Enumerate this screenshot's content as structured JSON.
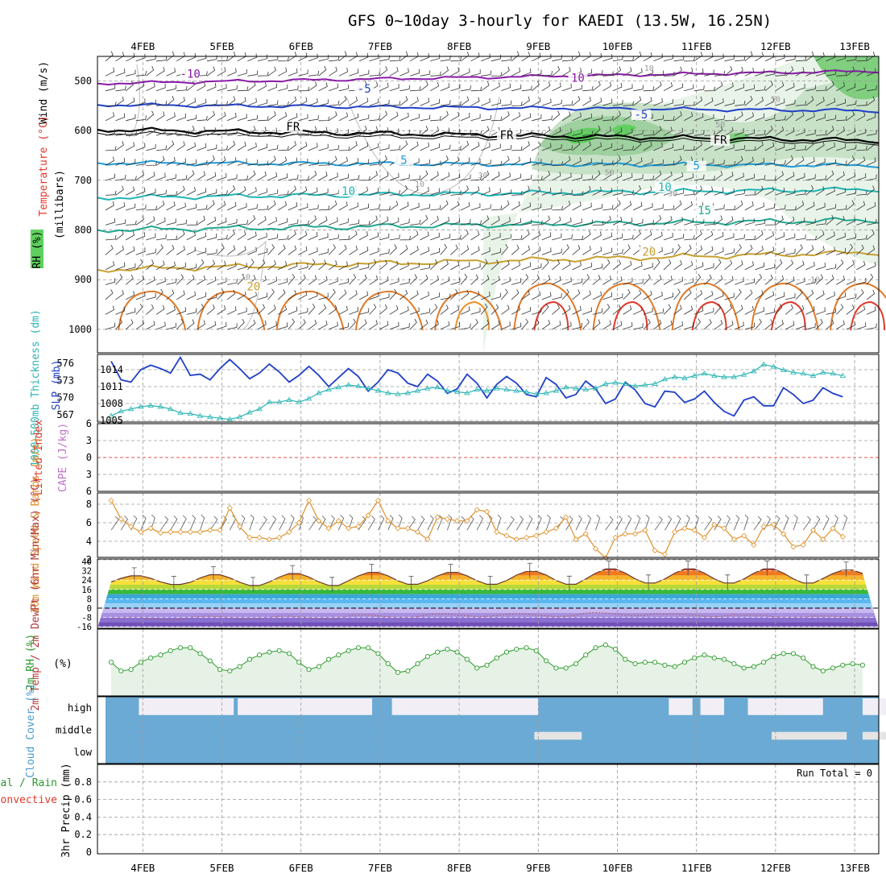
{
  "title": "GFS 0~10day 3-hourly for KAEDI (13.5W, 16.25N)",
  "dates": [
    "4FEB",
    "5FEB",
    "6FEB",
    "7FEB",
    "8FEB",
    "9FEB",
    "10FEB",
    "11FEB",
    "12FEB",
    "13FEB"
  ],
  "colors": {
    "slp": "#1f3fc8",
    "thickness": "#2ab4b4",
    "wind10m": "#e0902a",
    "rh2m": "#2a9a2a",
    "temp_red": "#e03a2a",
    "temp_orange": "#f0902a",
    "green_fill": "#5fd05f",
    "cloud": "#6aaad4",
    "grid": "#9a9a9a",
    "barb": "#555555"
  },
  "chart_data": [
    {
      "type": "contour",
      "name": "upper-air cross section",
      "ylabel": "(millibars)",
      "side_labels": [
        "Wind (m/s)",
        "Temperature (°C)",
        "RH (%)"
      ],
      "y_ticks": [
        "500",
        "600",
        "700",
        "800",
        "900",
        "1000"
      ],
      "ylim": [
        1000,
        450
      ],
      "isotherm_labels": [
        {
          "text": "-10",
          "x": 0.6,
          "p": 492
        },
        {
          "text": "10",
          "x": 5.5,
          "p": 500
        },
        {
          "text": "-5",
          "x": 2.8,
          "p": 522
        },
        {
          "text": "-5",
          "x": 6.3,
          "p": 574
        },
        {
          "text": "FR",
          "x": 1.9,
          "p": 598
        },
        {
          "text": "FR",
          "x": 4.6,
          "p": 615
        },
        {
          "text": "FR",
          "x": 7.3,
          "p": 625
        },
        {
          "text": "5",
          "x": 3.3,
          "p": 665
        },
        {
          "text": "5",
          "x": 7.0,
          "p": 677
        },
        {
          "text": "10",
          "x": 2.6,
          "p": 728
        },
        {
          "text": "10",
          "x": 6.6,
          "p": 720
        },
        {
          "text": "15",
          "x": 7.1,
          "p": 767
        },
        {
          "text": "20",
          "x": 6.4,
          "p": 850
        },
        {
          "text": "20",
          "x": 1.4,
          "p": 920
        }
      ],
      "rh_labels": [
        {
          "text": "10",
          "x": 6.4,
          "p": 480
        },
        {
          "text": "30",
          "x": 4.3,
          "p": 695
        },
        {
          "text": "50",
          "x": 5.9,
          "p": 690
        },
        {
          "text": "10",
          "x": 3.5,
          "p": 713
        },
        {
          "text": "50",
          "x": 7.3,
          "p": 593
        },
        {
          "text": "30",
          "x": 6.7,
          "p": 732
        },
        {
          "text": "50",
          "x": 8.0,
          "p": 542
        },
        {
          "text": "10",
          "x": 1.3,
          "p": 900
        },
        {
          "text": "10",
          "x": 8.5,
          "p": 905
        }
      ]
    },
    {
      "type": "line",
      "name": "SLP and 1000-500mb thickness",
      "ylabel_left": "1000~500mb Thickness (dm)",
      "ylabel_right": "SLP (mb)",
      "y_ticks_left": [
        "576",
        "573",
        "570",
        "567"
      ],
      "y_ticks_right": [
        "1014",
        "1011",
        "1008",
        "1005"
      ],
      "series": [
        {
          "name": "SLP (mb)",
          "ylim": [
            1005,
            1017
          ],
          "values": [
            1015.5,
            1012.2,
            1011.8,
            1014,
            1014.8,
            1014.2,
            1013.4,
            1016.2,
            1013,
            1013.2,
            1012.2,
            1014.2,
            1015.8,
            1014.2,
            1012.4,
            1013.4,
            1015,
            1013.6,
            1011.8,
            1013,
            1014.6,
            1013,
            1011,
            1012.6,
            1014.2,
            1012.8,
            1010.2,
            1011.8,
            1014,
            1013.4,
            1011.6,
            1011,
            1013.2,
            1012,
            1009.8,
            1010.6,
            1013.2,
            1011.6,
            1009,
            1011.4,
            1012.8,
            1011.6,
            1009.6,
            1009.2,
            1012.6,
            1011.4,
            1009,
            1009.6,
            1012,
            1010.6,
            1008,
            1008.8,
            1011.8,
            1010.4,
            1008,
            1007.4,
            1010.2,
            1010,
            1008.2,
            1008.8,
            1010.2,
            1008.2,
            1006.6,
            1005.8,
            1008.6,
            1009.2,
            1007.6,
            1007.6,
            1010.8,
            1009.6,
            1008,
            1008.6,
            1010.8,
            1009.8,
            1009.2
          ]
        },
        {
          "name": "Thickness (dm)",
          "ylim": [
            565,
            577
          ],
          "values": [
            566.8,
            567.6,
            568,
            568.4,
            568.6,
            568.4,
            568,
            567.3,
            567.2,
            566.8,
            566.6,
            566.4,
            566.2,
            566.6,
            567.4,
            568,
            569.2,
            569.2,
            569.6,
            569.2,
            569.8,
            570.8,
            571.4,
            571.8,
            572.2,
            572,
            571.6,
            571.2,
            570.8,
            570.6,
            570.8,
            571.2,
            571.6,
            571.8,
            571.2,
            571,
            570.8,
            571.4,
            571.2,
            571.6,
            571.4,
            571.2,
            571,
            570.6,
            570.8,
            571.2,
            571.8,
            571.6,
            571.4,
            571.6,
            572.4,
            572.6,
            572.4,
            572,
            572.2,
            572.4,
            573.2,
            573.6,
            573.4,
            573.8,
            574.2,
            573.8,
            573.6,
            573.6,
            574,
            574.6,
            575.8,
            575.4,
            574.8,
            574.4,
            574.2,
            573.8,
            574.4,
            574.2,
            573.8
          ]
        }
      ]
    },
    {
      "type": "line",
      "name": "Lifted Index and CAPE",
      "ylabel_left": "Lifted Index",
      "ylabel_right": "CAPE (J/kg)",
      "y_ticks": [
        "-6",
        "-3",
        "0",
        "3",
        "6"
      ],
      "ylim": [
        -6,
        6
      ],
      "series": [
        {
          "name": "Lifted Index",
          "values": []
        },
        {
          "name": "CAPE",
          "values": []
        }
      ]
    },
    {
      "type": "line",
      "name": "10m wind speed and barbs",
      "ylabel": "10m Wind Speed & Barbs (m/s)",
      "y_ticks": [
        "8",
        "6",
        "4",
        "2"
      ],
      "ylim": [
        1.5,
        9
      ],
      "series": [
        {
          "name": "10m Wind Speed",
          "values": [
            8.4,
            6.4,
            5.6,
            5,
            5.4,
            4.9,
            5,
            5,
            5,
            5,
            5.2,
            5.2,
            7.6,
            5.6,
            4.4,
            4.4,
            4.2,
            4.4,
            5,
            6,
            8.4,
            6.2,
            5.4,
            6.2,
            5.4,
            5.6,
            6.8,
            8.4,
            6.2,
            5.4,
            5.4,
            5,
            4.2,
            6.6,
            6.4,
            6.2,
            6.2,
            7.4,
            7.2,
            5,
            4.6,
            4.2,
            4.4,
            4.6,
            5,
            5.4,
            6.6,
            4.2,
            4.8,
            3.2,
            2.2,
            4.4,
            4.8,
            4.8,
            5.2,
            3,
            2.6,
            5,
            5.4,
            5.2,
            4.4,
            5.8,
            5.4,
            4.2,
            4.6,
            3.6,
            5.6,
            5.8,
            4.8,
            3.4,
            3.6,
            5.2,
            4.2,
            5.4,
            4.5
          ]
        }
      ]
    },
    {
      "type": "area",
      "name": "2m temperature and dewpoint",
      "ylabel": "2m Temp / 2m DewPt (6hr Min/Max) (°C)",
      "y_ticks": [
        "40",
        "32",
        "24",
        "16",
        "8",
        "0",
        "-8",
        "-16"
      ],
      "ylim": [
        -16,
        40
      ],
      "series": [
        {
          "name": "2m Temp (max)",
          "daily_min": [
            20,
            19,
            19,
            20,
            20,
            20,
            21,
            21,
            21,
            22
          ],
          "daily_max": [
            28,
            29,
            30,
            31,
            31,
            32,
            34,
            34,
            34,
            33
          ]
        },
        {
          "name": "2m DewPt",
          "approx": [
            -9,
            -8,
            -8,
            -7,
            -6,
            -6,
            -5,
            -6,
            -7,
            -8
          ]
        }
      ]
    },
    {
      "type": "line",
      "name": "2m relative humidity",
      "ylabel": "2m RH (%)",
      "ylim": [
        0,
        100
      ],
      "series": [
        {
          "name": "2m RH",
          "values": [
            42,
            30,
            32,
            42,
            48,
            52,
            58,
            62,
            62,
            54,
            44,
            32,
            30,
            36,
            46,
            52,
            56,
            58,
            54,
            42,
            32,
            36,
            46,
            52,
            58,
            62,
            62,
            54,
            40,
            28,
            30,
            40,
            50,
            56,
            60,
            56,
            46,
            34,
            38,
            48,
            56,
            60,
            62,
            58,
            44,
            34,
            34,
            40,
            52,
            62,
            66,
            60,
            46,
            40,
            42,
            42,
            38,
            36,
            42,
            48,
            52,
            48,
            46,
            40,
            34,
            36,
            42,
            50,
            54,
            54,
            48,
            36,
            30,
            34,
            38,
            40,
            38
          ]
        }
      ]
    },
    {
      "type": "heatmap",
      "name": "cloud cover",
      "ylabel": "Cloud Cover (%)",
      "rows": [
        "high",
        "middle",
        "low"
      ],
      "series": [
        {
          "name": "high",
          "clear_intervals": [
            [
              0.35,
              1.55
            ],
            [
              1.6,
              3.3
            ],
            [
              3.55,
              5.4
            ],
            [
              7.05,
              7.35
            ],
            [
              7.45,
              7.75
            ],
            [
              8.05,
              9.0
            ],
            [
              9.5,
              10.0
            ]
          ]
        },
        {
          "name": "middle",
          "partial_intervals": [
            [
              5.35,
              5.95
            ],
            [
              8.35,
              9.3
            ],
            [
              9.5,
              9.85
            ]
          ]
        },
        {
          "name": "low",
          "partial_intervals": []
        }
      ]
    },
    {
      "type": "bar",
      "name": "3hr precipitation",
      "ylabel": "3hr Precip (mm)",
      "legend": [
        "Total / Rain",
        "Convective"
      ],
      "y_ticks": [
        "0.8",
        "0.6",
        "0.4",
        "0.2",
        "0"
      ],
      "ylim": [
        0,
        1
      ],
      "annotation": "Run Total = 0",
      "values": []
    }
  ]
}
